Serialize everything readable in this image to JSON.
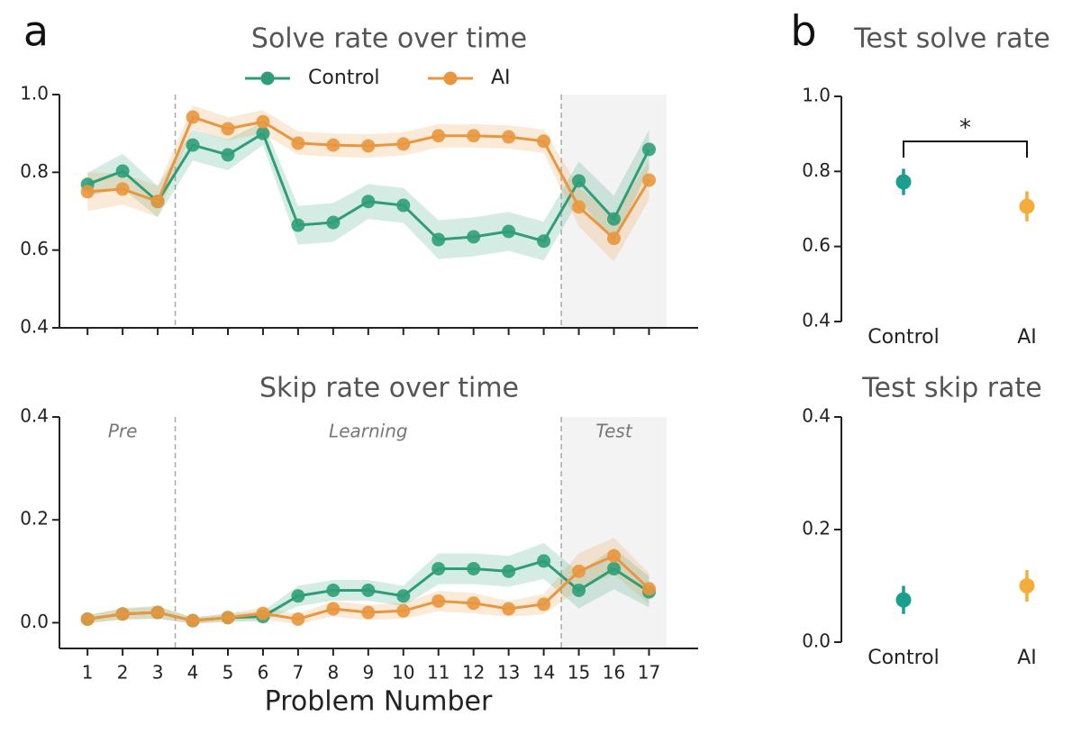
{
  "chart_data": [
    {
      "type": "line",
      "panel_label": "a",
      "title": "Solve rate over time",
      "x": [
        1,
        2,
        3,
        4,
        5,
        6,
        7,
        8,
        9,
        10,
        11,
        12,
        13,
        14,
        15,
        16,
        17
      ],
      "xlim": [
        0.2,
        18.4
      ],
      "ylim": [
        0.4,
        1.0
      ],
      "yticks": [
        0.4,
        0.6,
        0.8,
        1.0
      ],
      "dividers": [
        3.5,
        14.5
      ],
      "shaded_region": [
        14.5,
        17.5
      ],
      "legend": "top",
      "series": [
        {
          "name": "Control",
          "color": "#2f9e77",
          "values": [
            0.769,
            0.803,
            0.725,
            0.87,
            0.845,
            0.9,
            0.664,
            0.671,
            0.725,
            0.715,
            0.627,
            0.634,
            0.648,
            0.623,
            0.778,
            0.68,
            0.859
          ],
          "error": [
            0.03,
            0.045,
            0.04,
            0.04,
            0.04,
            0.03,
            0.05,
            0.05,
            0.045,
            0.045,
            0.05,
            0.05,
            0.05,
            0.05,
            0.05,
            0.06,
            0.05
          ]
        },
        {
          "name": "AI",
          "color": "#e9973e",
          "values": [
            0.75,
            0.757,
            0.725,
            0.942,
            0.912,
            0.93,
            0.875,
            0.87,
            0.868,
            0.873,
            0.894,
            0.894,
            0.891,
            0.88,
            0.711,
            0.63,
            0.78
          ],
          "error": [
            0.05,
            0.04,
            0.04,
            0.03,
            0.03,
            0.03,
            0.03,
            0.03,
            0.03,
            0.03,
            0.03,
            0.03,
            0.03,
            0.03,
            0.05,
            0.06,
            0.05
          ]
        }
      ]
    },
    {
      "type": "line",
      "title": "Skip rate over time",
      "x_label": "Problem Number",
      "x": [
        1,
        2,
        3,
        4,
        5,
        6,
        7,
        8,
        9,
        10,
        11,
        12,
        13,
        14,
        15,
        16,
        17
      ],
      "xticks": [
        1,
        2,
        3,
        4,
        5,
        6,
        7,
        8,
        9,
        10,
        11,
        12,
        13,
        14,
        15,
        16,
        17
      ],
      "xlim": [
        0.2,
        18.4
      ],
      "ylim": [
        -0.05,
        0.4
      ],
      "yticks": [
        0.0,
        0.2,
        0.4
      ],
      "dividers": [
        3.5,
        14.5
      ],
      "shaded_region": [
        14.5,
        17.5
      ],
      "annotations": [
        {
          "text": "Pre",
          "x": 2
        },
        {
          "text": "Learning",
          "x": 9
        },
        {
          "text": "Test",
          "x": 16
        }
      ],
      "series": [
        {
          "name": "Control",
          "color": "#2f9e77",
          "values": [
            0.007,
            0.017,
            0.02,
            0.004,
            0.01,
            0.012,
            0.052,
            0.063,
            0.063,
            0.052,
            0.105,
            0.105,
            0.1,
            0.12,
            0.063,
            0.105,
            0.06
          ],
          "error": [
            0.008,
            0.01,
            0.012,
            0.006,
            0.008,
            0.01,
            0.02,
            0.02,
            0.02,
            0.02,
            0.03,
            0.03,
            0.03,
            0.035,
            0.035,
            0.04,
            0.03
          ]
        },
        {
          "name": "AI",
          "color": "#e9973e",
          "values": [
            0.007,
            0.017,
            0.02,
            0.004,
            0.01,
            0.018,
            0.007,
            0.027,
            0.02,
            0.023,
            0.042,
            0.038,
            0.027,
            0.036,
            0.1,
            0.13,
            0.066
          ],
          "error": [
            0.008,
            0.012,
            0.012,
            0.006,
            0.008,
            0.012,
            0.01,
            0.015,
            0.015,
            0.015,
            0.02,
            0.02,
            0.015,
            0.02,
            0.035,
            0.035,
            0.03
          ]
        }
      ]
    },
    {
      "type": "pointrange",
      "panel_label": "b",
      "title": "Test solve rate",
      "categories": [
        "Control",
        "AI"
      ],
      "values": [
        0.772,
        0.707
      ],
      "error": [
        0.035,
        0.04
      ],
      "colors": [
        "#1a9e8f",
        "#f5ac3a"
      ],
      "ylim": [
        0.4,
        1.0
      ],
      "yticks": [
        0.4,
        0.6,
        0.8,
        1.0
      ],
      "significance": "*"
    },
    {
      "type": "pointrange",
      "title": "Test skip rate",
      "categories": [
        "Control",
        "AI"
      ],
      "values": [
        0.075,
        0.1
      ],
      "error": [
        0.025,
        0.028
      ],
      "colors": [
        "#1a9e8f",
        "#f5ac3a"
      ],
      "ylim": [
        0.0,
        0.4
      ],
      "yticks": [
        0.0,
        0.2,
        0.4
      ]
    }
  ]
}
